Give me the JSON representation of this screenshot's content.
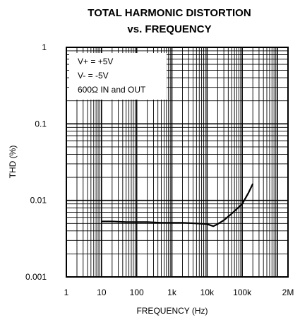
{
  "chart_data": {
    "type": "line",
    "title_line1": "TOTAL HARMONIC DISTORTION",
    "title_line2": "vs. FREQUENCY",
    "xlabel": "FREQUENCY (Hz)",
    "ylabel": "THD (%)",
    "x_scale": "log",
    "y_scale": "log",
    "xlim": [
      1,
      2000000
    ],
    "ylim": [
      0.001,
      1
    ],
    "x_ticks": [
      1,
      10,
      100,
      1000,
      10000,
      100000,
      2000000
    ],
    "x_tick_labels": [
      "1",
      "10",
      "100",
      "1k",
      "10k",
      "100k",
      "2M"
    ],
    "y_ticks": [
      1,
      0.1,
      0.01,
      0.001
    ],
    "y_tick_labels": [
      "1",
      "0.1",
      "0.01",
      "0.001"
    ],
    "grid": true,
    "annotations": [
      "V+ = +5V",
      "V- = -5V",
      "600Ω IN and OUT"
    ],
    "series": [
      {
        "x": [
          10,
          20,
          50,
          100,
          200,
          500,
          1000,
          2000,
          5000,
          10000,
          15000,
          20000,
          30000,
          50000,
          100000,
          150000,
          200000
        ],
        "y": [
          0.0053,
          0.0053,
          0.0052,
          0.0052,
          0.0052,
          0.0051,
          0.0051,
          0.0051,
          0.005,
          0.0049,
          0.0046,
          0.0049,
          0.0055,
          0.0067,
          0.009,
          0.0125,
          0.0165
        ]
      }
    ]
  }
}
